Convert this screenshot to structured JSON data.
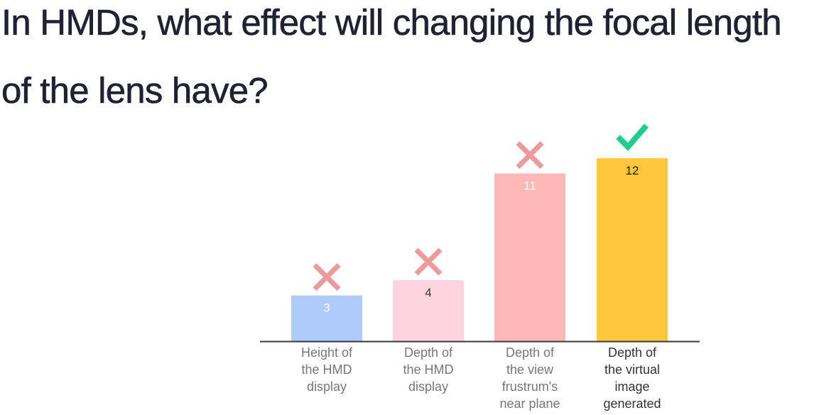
{
  "question": {
    "text": "In HMDs, what effect will changing the focal length of the lens have?"
  },
  "chart_data": {
    "type": "bar",
    "title": "",
    "xlabel": "",
    "ylabel": "",
    "ylim": [
      0,
      12
    ],
    "categories": [
      "Height of the HMD display",
      "Depth of the HMD display",
      "Depth of the view frustrum's near plane",
      "Depth of the virtual image generated"
    ],
    "category_lines": [
      [
        "Height of",
        "the HMD",
        "display"
      ],
      [
        "Depth of",
        "the HMD",
        "display"
      ],
      [
        "Depth of",
        "the view",
        "frustrum's",
        "near plane"
      ],
      [
        "Depth of",
        "the virtual",
        "image",
        "generated"
      ]
    ],
    "values": [
      3,
      4,
      11,
      12
    ],
    "bar_colors": [
      "#aecbfa",
      "#fdd4e0",
      "#feb8b8",
      "#fec63d"
    ],
    "value_label_colors": [
      "#ffffff",
      "#3c3c3c",
      "#ffffff",
      "#1a1a1a"
    ],
    "category_label_colors": [
      "#777777",
      "#777777",
      "#777777",
      "#333333"
    ],
    "markers": [
      "cross",
      "cross",
      "cross",
      "check"
    ],
    "correct_index": 3,
    "marker_colors": {
      "cross": "#ec9a9a",
      "check": "#1dce8c"
    },
    "axis_color": "#3a3a3a",
    "grid": false
  }
}
